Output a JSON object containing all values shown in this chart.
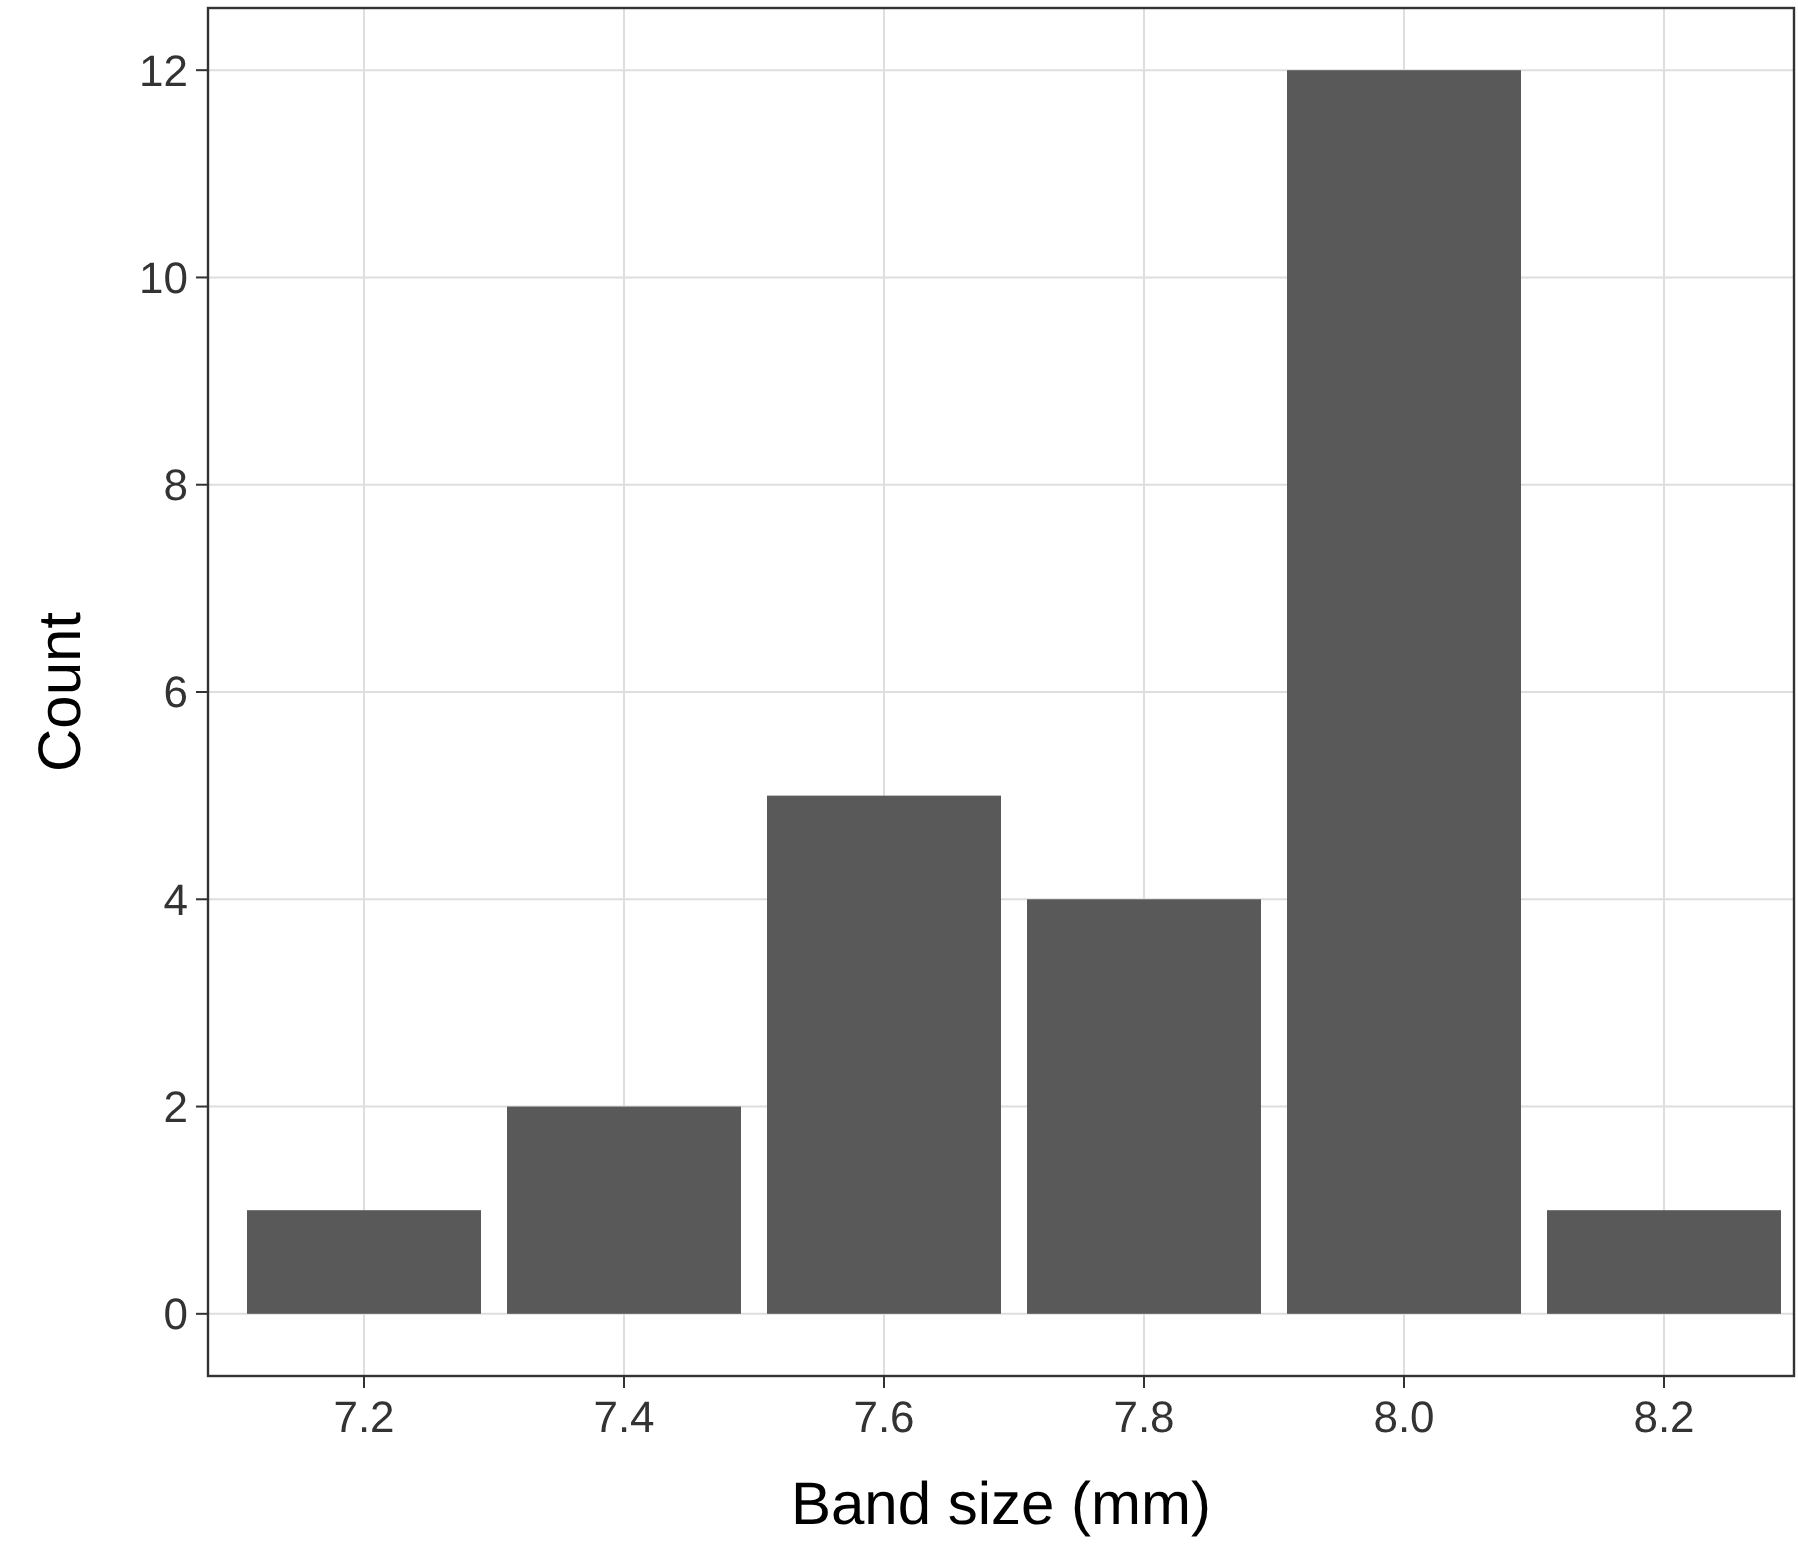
{
  "chart_data": {
    "type": "bar",
    "xlabel": "Band size (mm)",
    "ylabel": "Count",
    "x": [
      7.2,
      7.4,
      7.6,
      7.8,
      8.0,
      8.2
    ],
    "values": [
      1,
      2,
      5,
      4,
      12,
      1
    ],
    "color": "#595959",
    "xlim": [
      7.08,
      8.3
    ],
    "xticks": [
      {
        "value": 7.2,
        "label": "7.2"
      },
      {
        "value": 7.4,
        "label": "7.4"
      },
      {
        "value": 7.6,
        "label": "7.6"
      },
      {
        "value": 7.8,
        "label": "7.8"
      },
      {
        "value": 8.0,
        "label": "8.0"
      },
      {
        "value": 8.2,
        "label": "8.2"
      }
    ],
    "ylim": [
      -0.6,
      12.6
    ],
    "yticks": [
      0,
      2,
      4,
      6,
      8,
      10,
      12
    ],
    "grid": true
  }
}
